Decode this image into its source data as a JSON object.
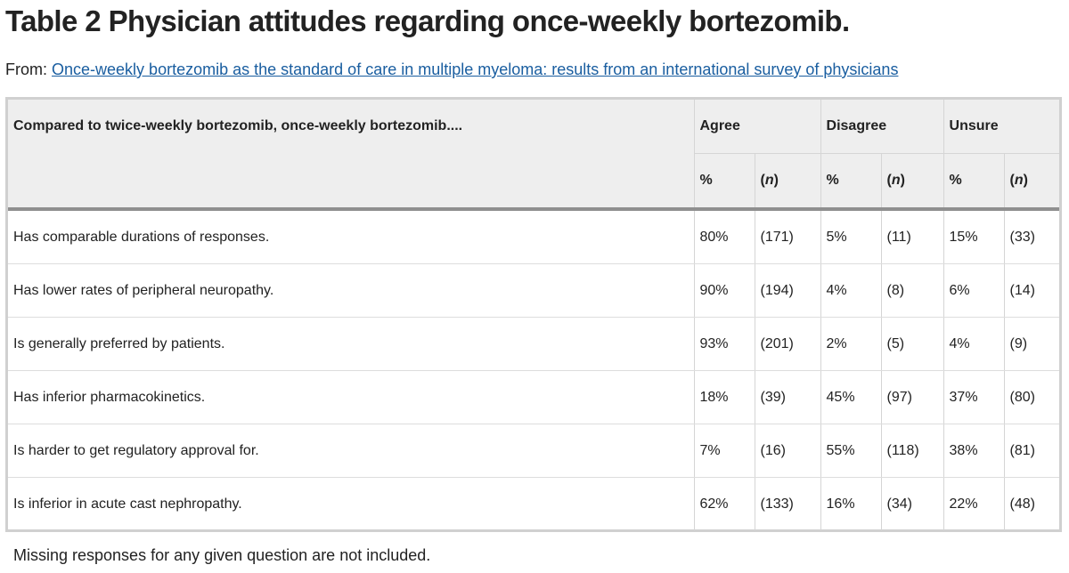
{
  "title": "Table 2 Physician attitudes regarding once-weekly bortezomib.",
  "source": {
    "prefix": "From:",
    "link_text": "Once-weekly bortezomib as the standard of care in multiple myeloma: results from an international survey of physicians"
  },
  "table": {
    "stub_header": "Compared to twice-weekly bortezomib, once-weekly bortezomib....",
    "groups": [
      "Agree",
      "Disagree",
      "Unsure"
    ],
    "subheaders": {
      "pct": "%",
      "n_open": "(",
      "n_var": "n",
      "n_close": ")"
    },
    "rows": [
      {
        "label": "Has comparable durations of responses.",
        "cells": [
          "80%",
          "(171)",
          "5%",
          "(11)",
          "15%",
          "(33)"
        ]
      },
      {
        "label": "Has lower rates of peripheral neuropathy.",
        "cells": [
          "90%",
          "(194)",
          "4%",
          "(8)",
          "6%",
          "(14)"
        ]
      },
      {
        "label": "Is generally preferred by patients.",
        "cells": [
          "93%",
          "(201)",
          "2%",
          "(5)",
          "4%",
          "(9)"
        ]
      },
      {
        "label": "Has inferior pharmacokinetics.",
        "cells": [
          "18%",
          "(39)",
          "45%",
          "(97)",
          "37%",
          "(80)"
        ]
      },
      {
        "label": "Is harder to get regulatory approval for.",
        "cells": [
          "7%",
          "(16)",
          "55%",
          "(118)",
          "38%",
          "(81)"
        ]
      },
      {
        "label": "Is inferior in acute cast nephropathy.",
        "cells": [
          "62%",
          "(133)",
          "16%",
          "(34)",
          "22%",
          "(48)"
        ]
      }
    ]
  },
  "footnote": "Missing responses for any given question are not included."
}
